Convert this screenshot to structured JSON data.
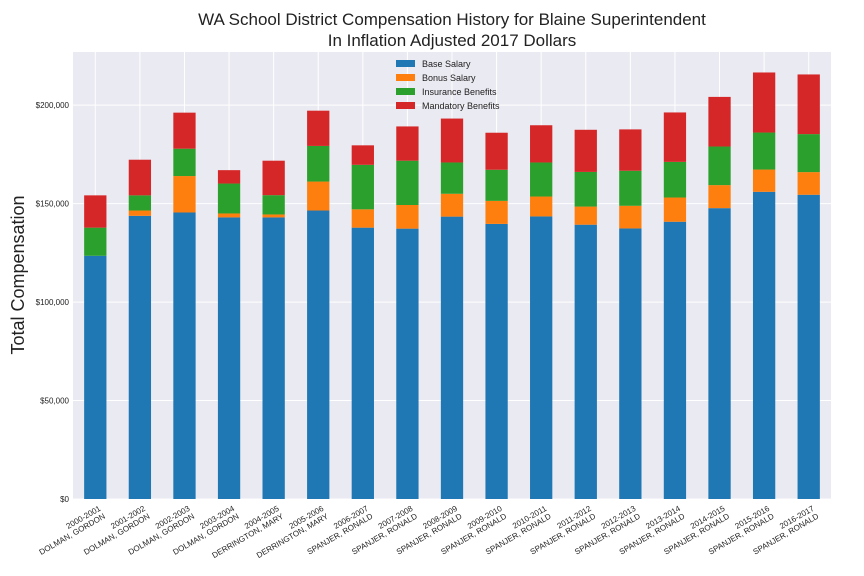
{
  "chart_data": {
    "type": "bar",
    "stacked": true,
    "title": "WA School District Compensation History for Blaine Superintendent",
    "subtitle": "In Inflation Adjusted 2017 Dollars",
    "xlabel": "",
    "ylabel": "Total Compensation",
    "ylim": [
      0,
      227000
    ],
    "yticks": [
      0,
      50000,
      100000,
      150000,
      200000
    ],
    "ytick_labels": [
      "$0",
      "$50,000",
      "$100,000",
      "$150,000",
      "$200,000"
    ],
    "grid": true,
    "legend_position": "top-center",
    "categories": [
      "2000-2001 DOLMAN, GORDON",
      "2001-2002 DOLMAN, GORDON",
      "2002-2003 DOLMAN, GORDON",
      "2003-2004 DOLMAN, GORDON",
      "2004-2005 DERRINGTON, MARY",
      "2005-2006 DERRINGTON, MARY",
      "2006-2007 SPANJER, RONALD",
      "2007-2008 SPANJER, RONALD",
      "2008-2009 SPANJER, RONALD",
      "2009-2010 SPANJER, RONALD",
      "2010-2011 SPANJER, RONALD",
      "2011-2012 SPANJER, RONALD",
      "2012-2013 SPANJER, RONALD",
      "2013-2014 SPANJER, RONALD",
      "2014-2015 SPANJER, RONALD",
      "2015-2016 SPANJER, RONALD",
      "2016-2017 SPANJER, RONALD"
    ],
    "category_lines": [
      [
        "2000-2001",
        "DOLMAN, GORDON"
      ],
      [
        "2001-2002",
        "DOLMAN, GORDON"
      ],
      [
        "2002-2003",
        "DOLMAN, GORDON"
      ],
      [
        "2003-2004",
        "DOLMAN, GORDON"
      ],
      [
        "2004-2005",
        "DERRINGTON, MARY"
      ],
      [
        "2005-2006",
        "DERRINGTON, MARY"
      ],
      [
        "2006-2007",
        "SPANJER, RONALD"
      ],
      [
        "2007-2008",
        "SPANJER, RONALD"
      ],
      [
        "2008-2009",
        "SPANJER, RONALD"
      ],
      [
        "2009-2010",
        "SPANJER, RONALD"
      ],
      [
        "2010-2011",
        "SPANJER, RONALD"
      ],
      [
        "2011-2012",
        "SPANJER, RONALD"
      ],
      [
        "2012-2013",
        "SPANJER, RONALD"
      ],
      [
        "2013-2014",
        "SPANJER, RONALD"
      ],
      [
        "2014-2015",
        "SPANJER, RONALD"
      ],
      [
        "2015-2016",
        "SPANJER, RONALD"
      ],
      [
        "2016-2017",
        "SPANJER, RONALD"
      ]
    ],
    "series": [
      {
        "name": "Base Salary",
        "color": "#1f77b4",
        "values": [
          123500,
          143800,
          145500,
          143000,
          143000,
          146500,
          137800,
          137300,
          143400,
          139700,
          143500,
          139300,
          137400,
          140800,
          147700,
          156000,
          154500
        ]
      },
      {
        "name": "Bonus Salary",
        "color": "#ff7f0e",
        "values": [
          0,
          2700,
          18500,
          2000,
          1500,
          14700,
          9300,
          12000,
          11600,
          11700,
          10100,
          9200,
          11500,
          12300,
          11700,
          11300,
          11500
        ]
      },
      {
        "name": "Insurance Benefits",
        "color": "#2ca02c",
        "values": [
          14300,
          7700,
          13900,
          15200,
          9800,
          18100,
          22600,
          22500,
          15900,
          15800,
          17300,
          17600,
          17800,
          18100,
          19600,
          18800,
          19300
        ]
      },
      {
        "name": "Mandatory Benefits",
        "color": "#d62728",
        "values": [
          16400,
          18100,
          18300,
          6800,
          17500,
          17900,
          9900,
          17400,
          22300,
          18800,
          18900,
          21400,
          21000,
          25100,
          25200,
          30500,
          30300
        ]
      }
    ]
  }
}
